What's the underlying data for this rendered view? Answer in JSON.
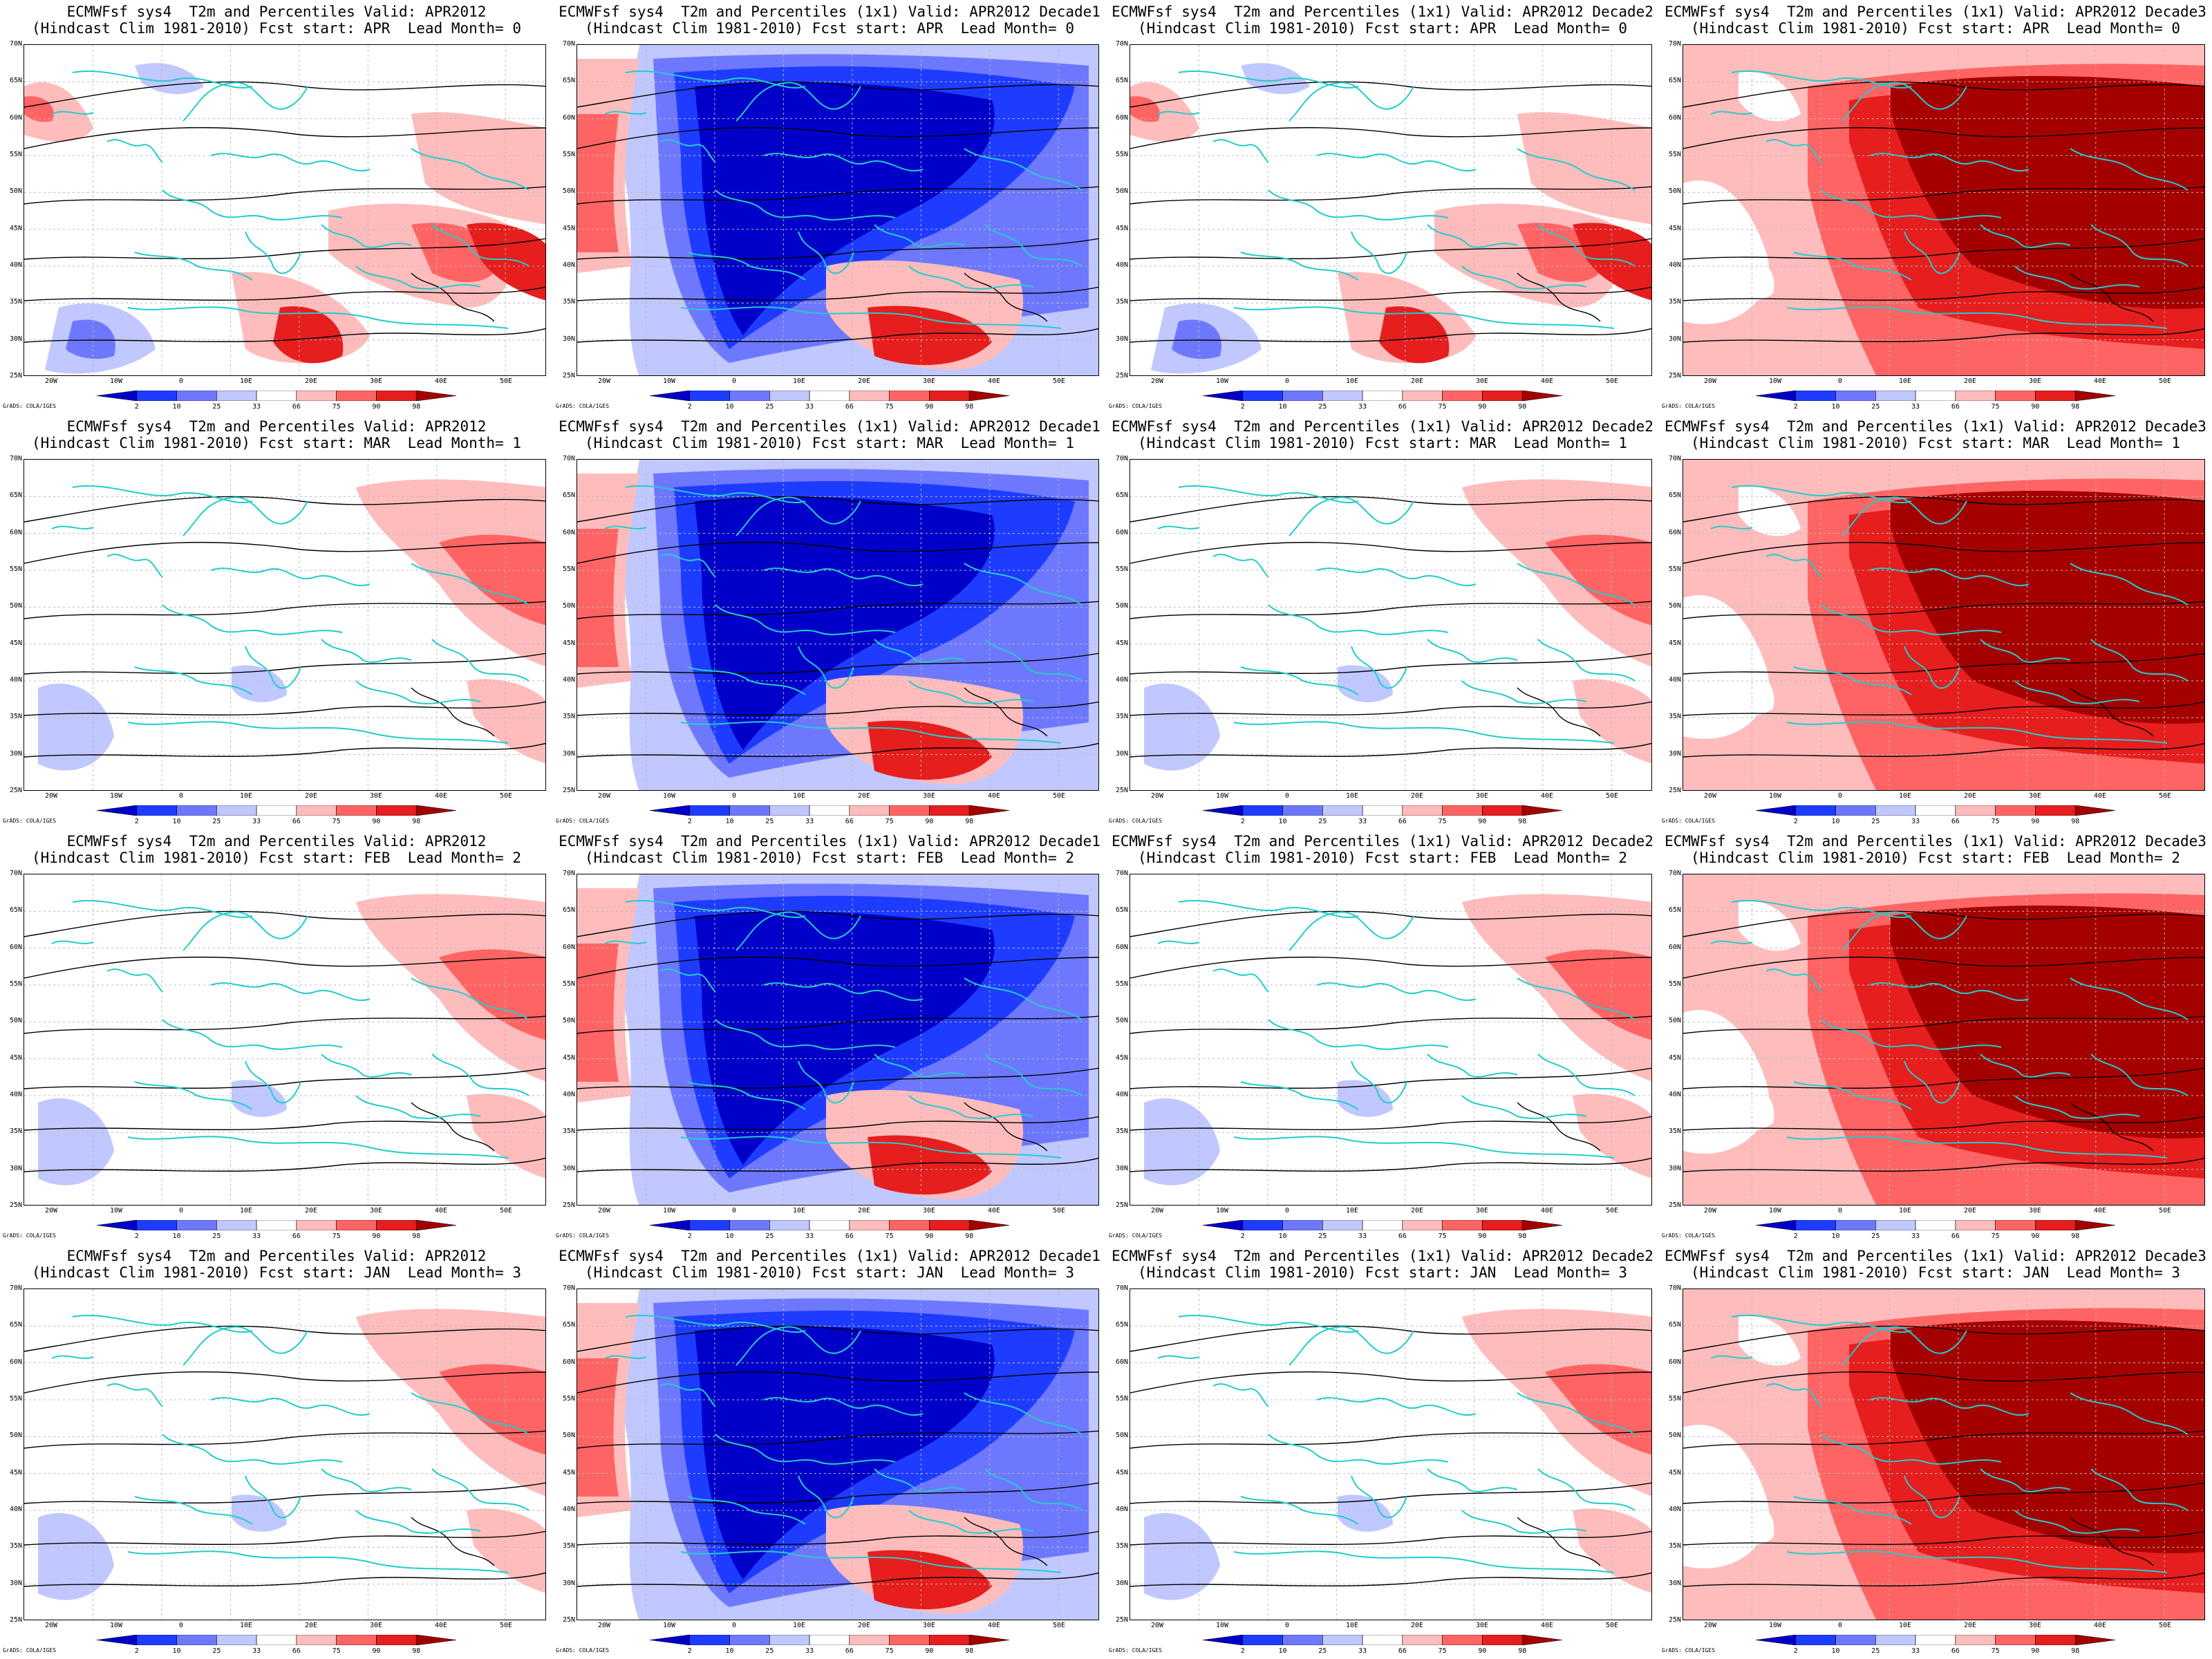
{
  "colors": {
    "p2": "#0000c8",
    "p10": "#1e3cff",
    "p25": "#6e78ff",
    "p33": "#c0c8ff",
    "p66": "#ffffff",
    "p75": "#ffbcbc",
    "p90": "#ff6464",
    "p98": "#e61e1e",
    "p100": "#a50000",
    "coast": "#22cccc",
    "contour": "#000000"
  },
  "colorbar": {
    "ticks": [
      "2",
      "10",
      "25",
      "33",
      "66",
      "75",
      "90",
      "98"
    ]
  },
  "axes": {
    "lat_labels": [
      "70N",
      "65N",
      "60N",
      "55N",
      "50N",
      "45N",
      "40N",
      "35N",
      "30N",
      "25N"
    ],
    "lon_labels": [
      "20W",
      "10W",
      "0",
      "10E",
      "20E",
      "30E",
      "40E",
      "50E"
    ]
  },
  "credit": "GrADS: COLA/IGES",
  "panels": [
    {
      "line1": "ECMWFsf sys4  T2m and Percentiles Valid: APR2012",
      "line2": "(Hindcast Clim 1981-2010) Fcst start: APR  Lead Month= 0",
      "bias": "mixed"
    },
    {
      "line1": "ECMWFsf sys4  T2m and Percentiles (1x1) Valid: APR2012 Decade1",
      "line2": "(Hindcast Clim 1981-2010) Fcst start: APR  Lead Month= 0",
      "bias": "cold"
    },
    {
      "line1": "ECMWFsf sys4  T2m and Percentiles (1x1) Valid: APR2012 Decade2",
      "line2": "(Hindcast Clim 1981-2010) Fcst start: APR  Lead Month= 0",
      "bias": "mixed"
    },
    {
      "line1": "ECMWFsf sys4  T2m and Percentiles (1x1) Valid: APR2012 Decade3",
      "line2": "(Hindcast Clim 1981-2010) Fcst start: APR  Lead Month= 0",
      "bias": "warm"
    },
    {
      "line1": "ECMWFsf sys4  T2m and Percentiles Valid: APR2012",
      "line2": "(Hindcast Clim 1981-2010) Fcst start: MAR  Lead Month= 1",
      "bias": "neutral"
    },
    {
      "line1": "ECMWFsf sys4  T2m and Percentiles (1x1) Valid: APR2012 Decade1",
      "line2": "(Hindcast Clim 1981-2010) Fcst start: MAR  Lead Month= 1",
      "bias": "cold"
    },
    {
      "line1": "ECMWFsf sys4  T2m and Percentiles (1x1) Valid: APR2012 Decade2",
      "line2": "(Hindcast Clim 1981-2010) Fcst start: MAR  Lead Month= 1",
      "bias": "neutral"
    },
    {
      "line1": "ECMWFsf sys4  T2m and Percentiles (1x1) Valid: APR2012 Decade3",
      "line2": "(Hindcast Clim 1981-2010) Fcst start: MAR  Lead Month= 1",
      "bias": "warm"
    },
    {
      "line1": "ECMWFsf sys4  T2m and Percentiles Valid: APR2012",
      "line2": "(Hindcast Clim 1981-2010) Fcst start: FEB  Lead Month= 2",
      "bias": "neutral"
    },
    {
      "line1": "ECMWFsf sys4  T2m and Percentiles (1x1) Valid: APR2012 Decade1",
      "line2": "(Hindcast Clim 1981-2010) Fcst start: FEB  Lead Month= 2",
      "bias": "cold"
    },
    {
      "line1": "ECMWFsf sys4  T2m and Percentiles (1x1) Valid: APR2012 Decade2",
      "line2": "(Hindcast Clim 1981-2010) Fcst start: FEB  Lead Month= 2",
      "bias": "neutral"
    },
    {
      "line1": "ECMWFsf sys4  T2m and Percentiles (1x1) Valid: APR2012 Decade3",
      "line2": "(Hindcast Clim 1981-2010) Fcst start: FEB  Lead Month= 2",
      "bias": "warm"
    },
    {
      "line1": "ECMWFsf sys4  T2m and Percentiles Valid: APR2012",
      "line2": "(Hindcast Clim 1981-2010) Fcst start: JAN  Lead Month= 3",
      "bias": "neutral"
    },
    {
      "line1": "ECMWFsf sys4  T2m and Percentiles (1x1) Valid: APR2012 Decade1",
      "line2": "(Hindcast Clim 1981-2010) Fcst start: JAN  Lead Month= 3",
      "bias": "cold"
    },
    {
      "line1": "ECMWFsf sys4  T2m and Percentiles (1x1) Valid: APR2012 Decade2",
      "line2": "(Hindcast Clim 1981-2010) Fcst start: JAN  Lead Month= 3",
      "bias": "neutral"
    },
    {
      "line1": "ECMWFsf sys4  T2m and Percentiles (1x1) Valid: APR2012 Decade3",
      "line2": "(Hindcast Clim 1981-2010) Fcst start: JAN  Lead Month= 3",
      "bias": "warm"
    }
  ]
}
